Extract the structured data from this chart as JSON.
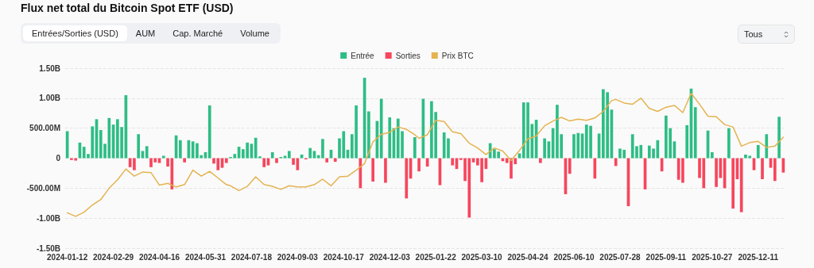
{
  "chart_data": {
    "type": "bar",
    "title": "Flux net total du Bitcoin Spot ETF (USD)",
    "annotations": [
      "Entrées/Sorties (USD)",
      "AUM",
      "Cap. Marché",
      "Volume",
      "Tous"
    ],
    "categories": [
      "2024-01-12",
      null,
      null,
      null,
      null,
      null,
      null,
      null,
      null,
      null,
      null,
      "2024-02-29",
      null,
      null,
      null,
      null,
      null,
      null,
      null,
      null,
      null,
      null,
      "2024-04-16",
      null,
      null,
      null,
      null,
      null,
      null,
      null,
      null,
      null,
      null,
      "2024-05-31",
      null,
      null,
      null,
      null,
      null,
      null,
      null,
      null,
      null,
      null,
      "2024-07-18",
      null,
      null,
      null,
      null,
      null,
      null,
      null,
      null,
      null,
      null,
      "2024-09-03",
      null,
      null,
      null,
      null,
      null,
      null,
      null,
      null,
      null,
      null,
      "2024-10-17",
      null,
      null,
      null,
      null,
      null,
      null,
      null,
      null,
      null,
      null,
      "2024-12-03",
      null,
      null,
      null,
      null,
      null,
      null,
      null,
      null,
      null,
      null,
      "2025-01-22",
      null,
      null,
      null,
      null,
      null,
      null,
      null,
      null,
      null,
      null,
      "2025-03-10",
      null,
      null,
      null,
      null,
      null,
      null,
      null,
      null,
      null,
      null,
      "2025-04-24",
      null,
      null,
      null,
      null,
      null,
      null,
      null,
      null,
      null,
      null,
      "2025-06-10",
      null,
      null,
      null,
      null,
      null,
      null,
      null,
      null,
      null,
      null,
      "2025-07-28",
      null,
      null,
      null,
      null,
      null,
      null,
      null,
      null,
      null,
      null,
      "2025-09-11",
      null,
      null,
      null,
      null,
      null,
      null,
      null,
      null,
      null,
      null,
      "2025-10-27",
      null,
      null,
      null,
      null,
      null,
      null,
      null,
      null,
      null,
      null,
      "2025-12-11",
      null,
      null,
      null,
      null,
      null,
      null
    ],
    "series": [
      {
        "name": "Entrée",
        "color": "#2ebd85",
        "values": [
          450000000.0,
          null,
          null,
          260000000.0,
          190000000.0,
          70000000.0,
          530000000.0,
          650000000.0,
          470000000.0,
          240000000.0,
          670000000.0,
          560000000.0,
          650000000.0,
          520000000.0,
          1050000000.0,
          null,
          null,
          400000000.0,
          120000000.0,
          200000000.0,
          null,
          null,
          null,
          40000000.0,
          null,
          null,
          380000000.0,
          300000000.0,
          null,
          300000000.0,
          280000000.0,
          250000000.0,
          50000000.0,
          100000000.0,
          880000000.0,
          null,
          null,
          null,
          null,
          20000000.0,
          70000000.0,
          190000000.0,
          150000000.0,
          260000000.0,
          240000000.0,
          340000000.0,
          30000000.0,
          null,
          null,
          100000000.0,
          null,
          20000000.0,
          40000000.0,
          120000000.0,
          null,
          null,
          60000000.0,
          null,
          170000000.0,
          120000000.0,
          50000000.0,
          320000000.0,
          null,
          140000000.0,
          null,
          330000000.0,
          450000000.0,
          140000000.0,
          400000000.0,
          880000000.0,
          null,
          1340000000.0,
          780000000.0,
          null,
          620000000.0,
          990000000.0,
          null,
          680000000.0,
          500000000.0,
          660000000.0,
          450000000.0,
          null,
          null,
          350000000.0,
          null,
          990000000.0,
          null,
          950000000.0,
          770000000.0,
          null,
          430000000.0,
          330000000.0,
          null,
          null,
          null,
          null,
          null,
          null,
          null,
          null,
          null,
          250000000.0,
          150000000.0,
          110000000.0,
          null,
          null,
          null,
          null,
          80000000.0,
          930000000.0,
          930000000.0,
          570000000.0,
          640000000.0,
          null,
          330000000.0,
          280000000.0,
          500000000.0,
          890000000.0,
          400000000.0,
          null,
          null,
          400000000.0,
          420000000.0,
          410000000.0,
          560000000.0,
          540000000.0,
          null,
          410000000.0,
          1150000000.0,
          1100000000.0,
          810000000.0,
          null,
          160000000.0,
          140000000.0,
          null,
          400000000.0,
          200000000.0,
          220000000.0,
          null,
          210000000.0,
          160000000.0,
          300000000.0,
          null,
          710000000.0,
          500000000.0,
          280000000.0,
          null,
          null,
          550000000.0,
          1160000000.0,
          850000000.0,
          null,
          null,
          460000000.0,
          100000000.0,
          null,
          null,
          null,
          500000000.0,
          null,
          null,
          null,
          60000000.0,
          40000000.0,
          null,
          220000000.0,
          null,
          400000000.0,
          null,
          null,
          690000000.0,
          null
        ]
      },
      {
        "name": "Sorties",
        "color": "#f6465d",
        "values": [
          null,
          -30000000.0,
          -40000000.0,
          null,
          null,
          null,
          null,
          null,
          null,
          null,
          null,
          null,
          null,
          null,
          null,
          -150000000.0,
          -200000000.0,
          null,
          null,
          null,
          -150000000.0,
          -70000000.0,
          -80000000.0,
          null,
          -140000000.0,
          -520000000.0,
          null,
          null,
          -70000000.0,
          null,
          null,
          null,
          null,
          null,
          null,
          -90000000.0,
          -200000000.0,
          -160000000.0,
          -80000000.0,
          null,
          null,
          null,
          null,
          null,
          null,
          null,
          null,
          -150000000.0,
          -120000000.0,
          null,
          -80000000.0,
          null,
          null,
          null,
          -110000000.0,
          -200000000.0,
          null,
          -20000000.0,
          null,
          null,
          null,
          null,
          -70000000.0,
          null,
          -60000000.0,
          null,
          null,
          null,
          null,
          null,
          -500000000.0,
          null,
          null,
          -390000000.0,
          null,
          null,
          -410000000.0,
          null,
          null,
          null,
          null,
          -670000000.0,
          -340000000.0,
          null,
          -220000000.0,
          null,
          -140000000.0,
          null,
          null,
          -450000000.0,
          null,
          null,
          -120000000.0,
          -180000000.0,
          -30000000.0,
          -380000000.0,
          -990000000.0,
          -70000000.0,
          -120000000.0,
          -400000000.0,
          -180000000.0,
          null,
          null,
          null,
          -50000000.0,
          -80000000.0,
          -340000000.0,
          -100000000.0,
          null,
          null,
          null,
          null,
          null,
          -80000000.0,
          null,
          null,
          null,
          null,
          null,
          -600000000.0,
          -260000000.0,
          null,
          null,
          null,
          null,
          null,
          -340000000.0,
          null,
          null,
          null,
          null,
          -130000000.0,
          null,
          null,
          -800000000.0,
          null,
          null,
          null,
          -520000000.0,
          null,
          null,
          null,
          -220000000.0,
          null,
          null,
          null,
          -360000000.0,
          -410000000.0,
          null,
          null,
          null,
          -330000000.0,
          -500000000.0,
          null,
          null,
          -480000000.0,
          -330000000.0,
          -500000000.0,
          null,
          -840000000.0,
          -350000000.0,
          -900000000.0,
          null,
          null,
          -200000000.0,
          null,
          -350000000.0,
          null,
          -160000000.0,
          -380000000.0,
          null,
          -240000000.0
        ]
      },
      {
        "name": "Prix BTC",
        "type": "line",
        "color": "#e5b350",
        "values": [
          -910000000.0,
          null,
          -970000000.0,
          null,
          -900000000.0,
          null,
          -780000000.0,
          null,
          -690000000.0,
          null,
          -500000000.0,
          null,
          -360000000.0,
          null,
          -180000000.0,
          null,
          -300000000.0,
          null,
          -230000000.0,
          null,
          -240000000.0,
          null,
          -450000000.0,
          null,
          -420000000.0,
          null,
          -480000000.0,
          null,
          -440000000.0,
          null,
          -200000000.0,
          null,
          -300000000.0,
          null,
          -220000000.0,
          null,
          -330000000.0,
          null,
          -440000000.0,
          -460000000.0,
          null,
          -540000000.0,
          null,
          -470000000.0,
          null,
          -310000000.0,
          null,
          -440000000.0,
          null,
          -470000000.0,
          null,
          -520000000.0,
          null,
          -460000000.0,
          null,
          -480000000.0,
          null,
          -480000000.0,
          null,
          -440000000.0,
          null,
          -350000000.0,
          null,
          -460000000.0,
          null,
          -310000000.0,
          null,
          -300000000.0,
          null,
          -200000000.0,
          null,
          -90000000.0,
          null,
          270000000.0,
          null,
          400000000.0,
          null,
          430000000.0,
          null,
          520000000.0,
          null,
          480000000.0,
          null,
          390000000.0,
          330000000.0,
          null,
          390000000.0,
          null,
          630000000.0,
          null,
          610000000.0,
          null,
          440000000.0,
          null,
          410000000.0,
          null,
          250000000.0,
          null,
          170000000.0,
          null,
          60000000.0,
          null,
          170000000.0,
          null,
          120000000.0,
          null,
          -40000000.0,
          null,
          130000000.0,
          null,
          320000000.0,
          null,
          370000000.0,
          null,
          540000000.0,
          null,
          620000000.0,
          null,
          680000000.0,
          null,
          620000000.0,
          null,
          650000000.0,
          null,
          630000000.0,
          null,
          670000000.0,
          null,
          780000000.0,
          null,
          960000000.0,
          980000000.0,
          null,
          920000000.0,
          null,
          900000000.0,
          null,
          1000000000.0,
          null,
          830000000.0,
          null,
          780000000.0,
          null,
          850000000.0,
          null,
          880000000.0,
          null,
          760000000.0,
          null,
          1080000000.0,
          null,
          900000000.0,
          null,
          700000000.0,
          null,
          690000000.0,
          null,
          560000000.0,
          null,
          520000000.0,
          null,
          200000000.0,
          null,
          260000000.0,
          null,
          280000000.0,
          null,
          180000000.0,
          null,
          200000000.0,
          null,
          350000000.0
        ]
      }
    ],
    "ylim": [
      -1500000000.0,
      1500000000.0
    ],
    "yticks": [
      {
        "value": -1500000000.0,
        "label": "-1.50B"
      },
      {
        "value": -1000000000.0,
        "label": "-1.00B"
      },
      {
        "value": -500000000.0,
        "label": "-500.00M"
      },
      {
        "value": 0,
        "label": "0"
      },
      {
        "value": 500000000.0,
        "label": "500.00M"
      },
      {
        "value": 1000000000.0,
        "label": "1.00B"
      },
      {
        "value": 1500000000.0,
        "label": "1.50B"
      }
    ],
    "grid": "y",
    "legend": "top",
    "marker": "none",
    "line_style": "solid"
  }
}
